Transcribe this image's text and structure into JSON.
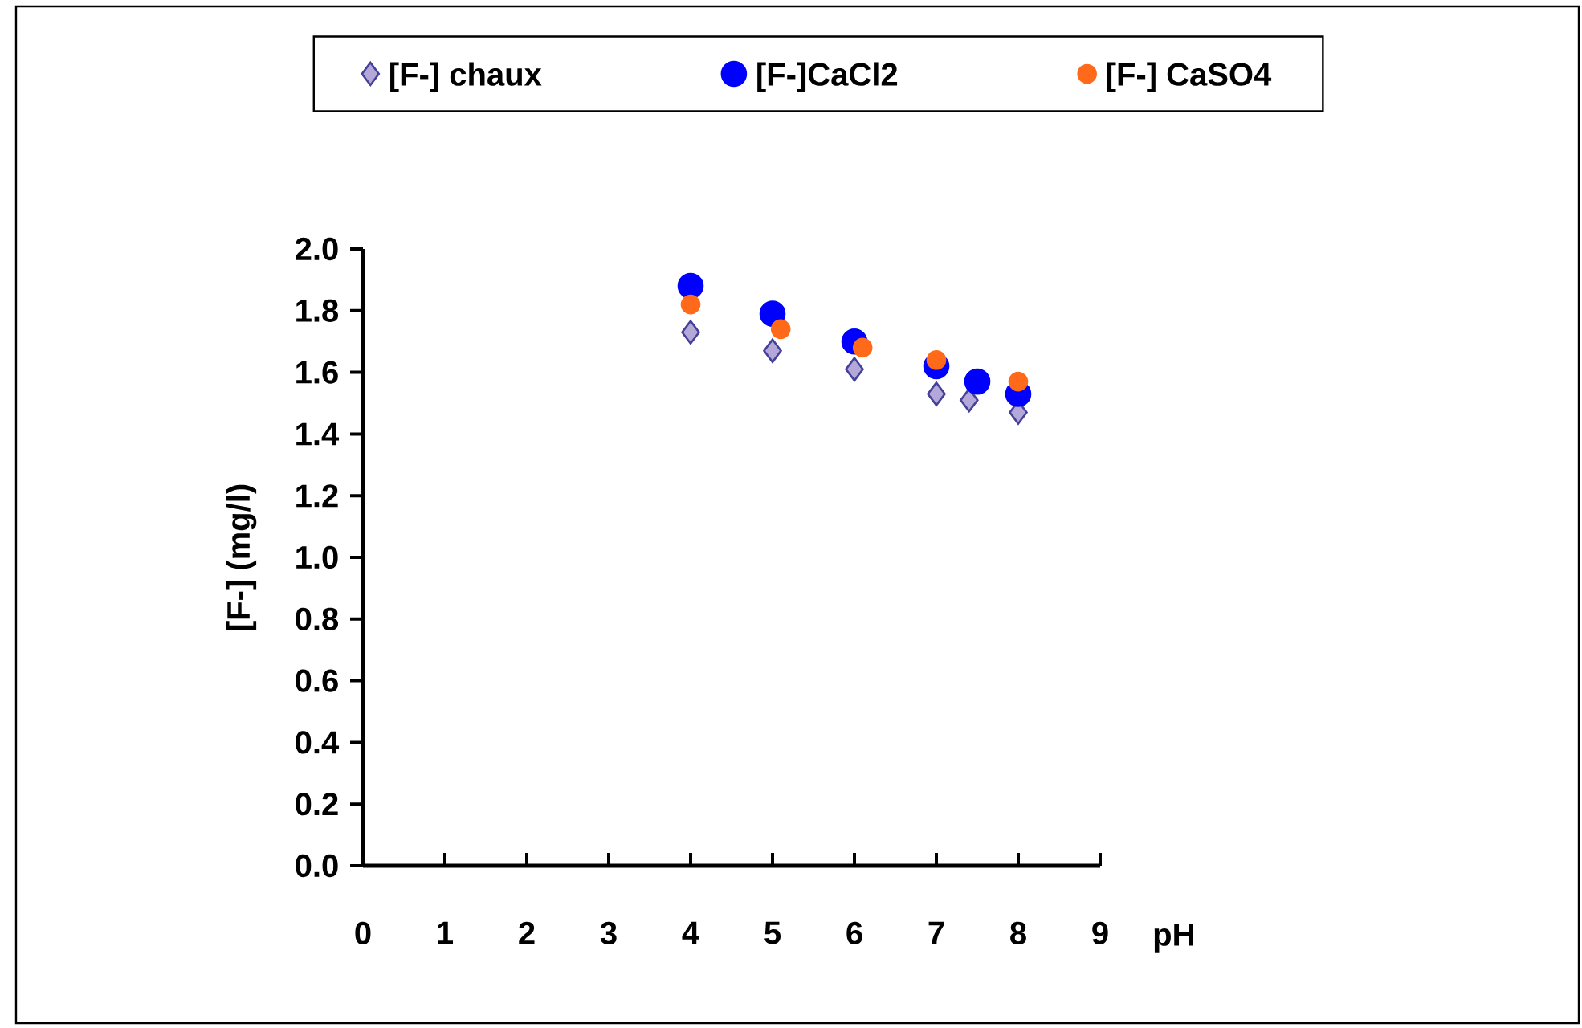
{
  "chart_data": {
    "type": "scatter",
    "xlabel": "pH",
    "ylabel": "[F-]  (mg/l)",
    "legend": "top",
    "xlim": [
      0,
      9
    ],
    "xticks": [
      0,
      1,
      2,
      3,
      4,
      5,
      6,
      7,
      8,
      9
    ],
    "ylim": [
      0,
      2
    ],
    "yticks": [
      {
        "value": 0,
        "label": "0.0"
      },
      {
        "value": 0.2,
        "label": "0.2"
      },
      {
        "value": 0.4,
        "label": "0.4"
      },
      {
        "value": 0.6,
        "label": "0.6"
      },
      {
        "value": 0.8,
        "label": "0.8"
      },
      {
        "value": 1,
        "label": "1.0"
      },
      {
        "value": 1.2,
        "label": "1.2"
      },
      {
        "value": 1.4,
        "label": "1.4"
      },
      {
        "value": 1.6,
        "label": "1.6"
      },
      {
        "value": 1.8,
        "label": "1.8"
      },
      {
        "value": 2,
        "label": "2.0"
      }
    ],
    "series": [
      {
        "name": "[F-] chaux",
        "color": "#b4a8d8",
        "marker": "diamond",
        "x": [
          4,
          5,
          6,
          7,
          7.4,
          8
        ],
        "values": [
          1.73,
          1.67,
          1.61,
          1.53,
          1.51,
          1.47
        ]
      },
      {
        "name": "[F-]CaCl2",
        "color": "#0000ff",
        "marker": "circle",
        "x": [
          4,
          5,
          6,
          7,
          7.5,
          8
        ],
        "values": [
          1.88,
          1.79,
          1.7,
          1.62,
          1.57,
          1.53
        ]
      },
      {
        "name": "[F-] CaSO4",
        "color": "#ff6a1a",
        "marker": "circle",
        "x": [
          4,
          5.1,
          6.1,
          7,
          8
        ],
        "values": [
          1.82,
          1.74,
          1.68,
          1.64,
          1.57
        ]
      }
    ]
  }
}
